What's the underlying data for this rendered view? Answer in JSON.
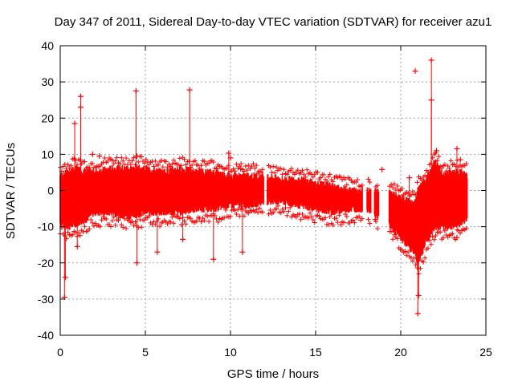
{
  "chart_data": {
    "type": "scatter",
    "title": "Day 347 of 2011, Sidereal Day-to-day VTEC variation (SDTVAR) for receiver azu1",
    "xlabel": "GPS time / hours",
    "ylabel": "SDTVAR / TECUs",
    "xlim": [
      0,
      25
    ],
    "ylim": [
      -40,
      40
    ],
    "xticks": [
      0,
      5,
      10,
      15,
      20,
      25
    ],
    "yticks": [
      -40,
      -30,
      -20,
      -10,
      0,
      10,
      20,
      30,
      40
    ],
    "grid": true,
    "marker": "+",
    "color": "#ff0000",
    "series": [
      {
        "name": "SDTVAR",
        "envelope": [
          {
            "x": 0.0,
            "low": -9,
            "high": 4
          },
          {
            "x": 0.5,
            "low": -10,
            "high": 5
          },
          {
            "x": 1.0,
            "low": -9,
            "high": 6
          },
          {
            "x": 1.5,
            "low": -8,
            "high": 5
          },
          {
            "x": 2.0,
            "low": -6,
            "high": 5
          },
          {
            "x": 3.0,
            "low": -6,
            "high": 6
          },
          {
            "x": 4.0,
            "low": -7,
            "high": 6
          },
          {
            "x": 5.0,
            "low": -6,
            "high": 6
          },
          {
            "x": 6.0,
            "low": -6,
            "high": 5
          },
          {
            "x": 7.0,
            "low": -6,
            "high": 6
          },
          {
            "x": 8.0,
            "low": -5,
            "high": 5
          },
          {
            "x": 9.0,
            "low": -5,
            "high": 5
          },
          {
            "x": 10.0,
            "low": -4,
            "high": 4
          },
          {
            "x": 11.0,
            "low": -4,
            "high": 4
          },
          {
            "x": 12.0,
            "low": -3,
            "high": 4
          },
          {
            "x": 13.0,
            "low": -3,
            "high": 3
          },
          {
            "x": 14.0,
            "low": -4,
            "high": 3
          },
          {
            "x": 15.0,
            "low": -5,
            "high": 2
          },
          {
            "x": 16.0,
            "low": -6,
            "high": 1
          },
          {
            "x": 17.0,
            "low": -5,
            "high": 0
          },
          {
            "x": 18.0,
            "low": -5,
            "high": 0
          },
          {
            "x": 19.0,
            "low": -8,
            "high": 0
          },
          {
            "x": 20.0,
            "low": -13,
            "high": -2
          },
          {
            "x": 20.8,
            "low": -17,
            "high": -4
          },
          {
            "x": 21.0,
            "low": -20,
            "high": 0
          },
          {
            "x": 21.5,
            "low": -14,
            "high": 3
          },
          {
            "x": 22.0,
            "low": -10,
            "high": 8
          },
          {
            "x": 22.5,
            "low": -10,
            "high": 4
          },
          {
            "x": 23.0,
            "low": -10,
            "high": 5
          },
          {
            "x": 23.5,
            "low": -9,
            "high": 5
          },
          {
            "x": 23.9,
            "low": -8,
            "high": 4
          }
        ],
        "gaps": [
          [
            11.95,
            12.15
          ],
          [
            17.75,
            18.0
          ],
          [
            18.25,
            18.45
          ],
          [
            18.7,
            19.3
          ]
        ],
        "outliers": [
          {
            "x": 0.25,
            "y": -29.5
          },
          {
            "x": 0.3,
            "y": -24
          },
          {
            "x": 0.85,
            "y": 18.5
          },
          {
            "x": 1.2,
            "y": 26
          },
          {
            "x": 1.2,
            "y": 23
          },
          {
            "x": 1.0,
            "y": -15.5
          },
          {
            "x": 1.9,
            "y": 10
          },
          {
            "x": 2.3,
            "y": 9.5
          },
          {
            "x": 4.45,
            "y": 27.5
          },
          {
            "x": 4.5,
            "y": 9.5
          },
          {
            "x": 4.5,
            "y": -20
          },
          {
            "x": 5.7,
            "y": -17
          },
          {
            "x": 7.2,
            "y": -13.5
          },
          {
            "x": 7.6,
            "y": 27.8
          },
          {
            "x": 9.0,
            "y": -19
          },
          {
            "x": 9.2,
            "y": 6
          },
          {
            "x": 9.9,
            "y": 10.3
          },
          {
            "x": 10.0,
            "y": 9
          },
          {
            "x": 10.7,
            "y": -17
          },
          {
            "x": 10.6,
            "y": 6
          },
          {
            "x": 18.5,
            "y": -8
          },
          {
            "x": 18.9,
            "y": 5.8
          },
          {
            "x": 20.5,
            "y": 3.5
          },
          {
            "x": 20.85,
            "y": 33
          },
          {
            "x": 21.0,
            "y": -34
          },
          {
            "x": 21.05,
            "y": -29
          },
          {
            "x": 21.8,
            "y": 36
          },
          {
            "x": 21.8,
            "y": 25
          },
          {
            "x": 22.1,
            "y": 11
          },
          {
            "x": 23.3,
            "y": 11.5
          },
          {
            "x": 23.5,
            "y": 8.5
          },
          {
            "x": 23.3,
            "y": -13
          }
        ]
      }
    ]
  }
}
